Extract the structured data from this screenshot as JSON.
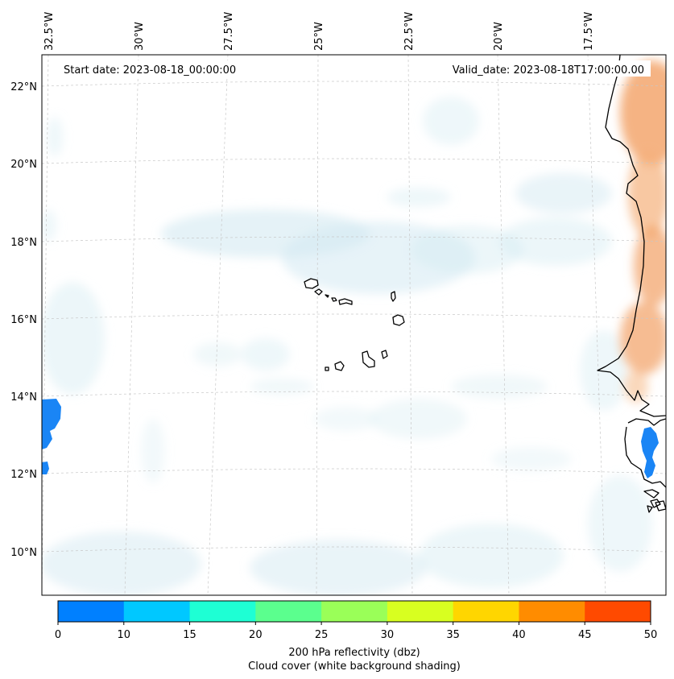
{
  "map": {
    "start_date": "Start date: 2023-08-18_00:00:00",
    "valid_date": "Valid_date: 2023-08-18T17:00:00.00",
    "lon_ticks": [
      "32.5°W",
      "30°W",
      "27.5°W",
      "25°W",
      "22.5°W",
      "20°W",
      "17.5°W"
    ],
    "lat_ticks": [
      "22°N",
      "20°N",
      "18°N",
      "16°N",
      "14°N",
      "12°N",
      "10°N"
    ]
  },
  "colorbar": {
    "tick_labels": [
      "0",
      "10",
      "15",
      "20",
      "25",
      "30",
      "35",
      "40",
      "45",
      "50"
    ],
    "colors": [
      "#0080ff",
      "#00c8ff",
      "#1effd4",
      "#5bff8e",
      "#9aff58",
      "#d8ff20",
      "#ffd600",
      "#ff8c00",
      "#ff4a00"
    ],
    "label_line1": "200 hPa reflectivity (dbz)",
    "label_line2": "Cloud cover (white background shading)"
  },
  "style": {
    "cloud_color": "#d4eaf2",
    "land_hot_color": "#f2a064",
    "echo_color": "#1a85f5"
  }
}
